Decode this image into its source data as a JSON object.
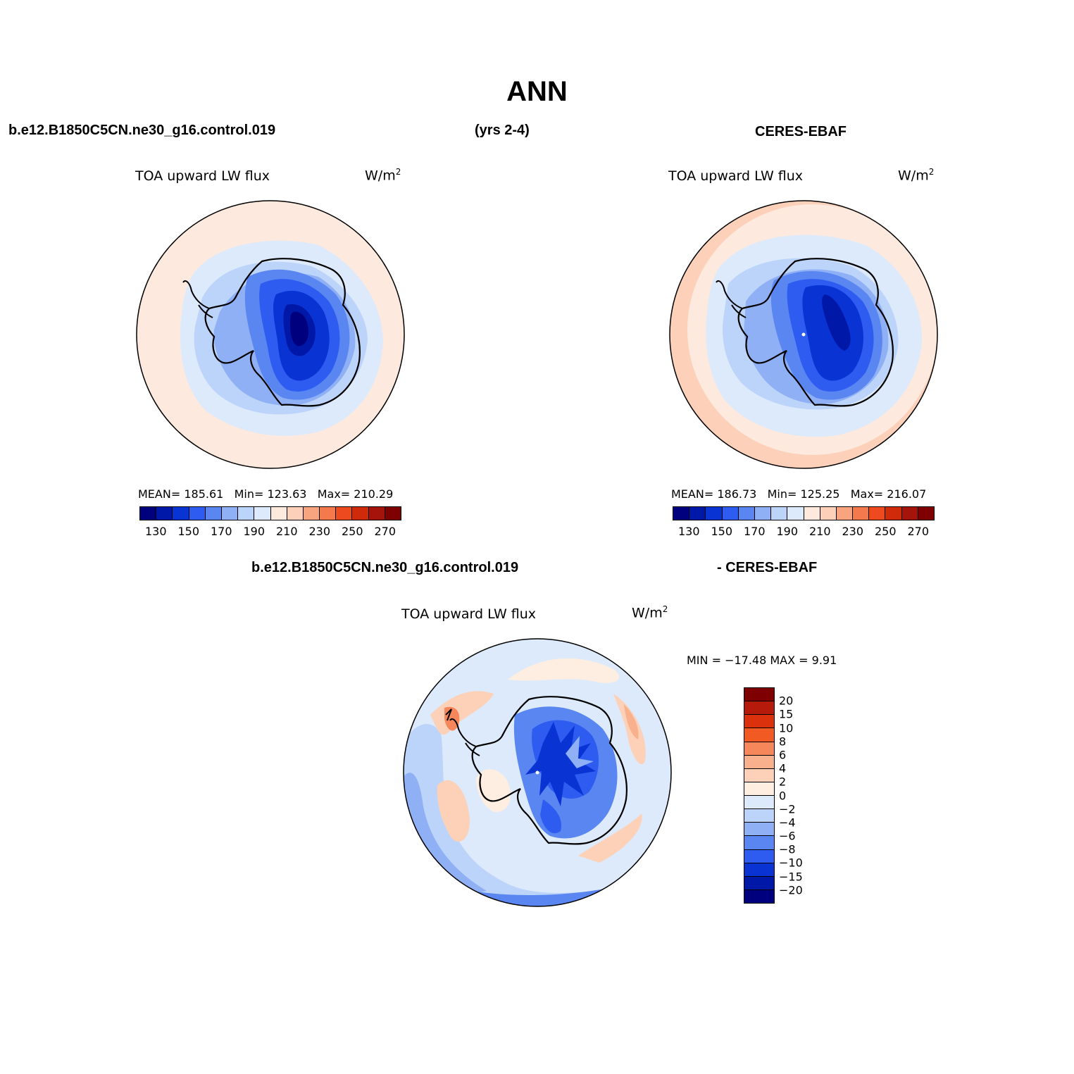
{
  "title": "ANN",
  "header": {
    "left": "b.e12.B1850C5CN.ne30_g16.control.019",
    "center": "(yrs 2-4)",
    "right": "CERES-EBAF"
  },
  "diff_header": {
    "left": "b.e12.B1850C5CN.ne30_g16.control.019",
    "right": "- CERES-EBAF"
  },
  "colors": {
    "abs_scale": [
      "#00007f",
      "#0018a8",
      "#0a33d4",
      "#2e5cf0",
      "#5a86f2",
      "#8fb0f5",
      "#bcd4fa",
      "#ddeafc",
      "#fde9dd",
      "#fcd0b9",
      "#f8a47f",
      "#f47a4d",
      "#ee4a1f",
      "#cf2a0a",
      "#a5140a",
      "#7f0000"
    ],
    "diff_scale": [
      "#7f0000",
      "#b51a0a",
      "#db320d",
      "#f25a23",
      "#f5875a",
      "#f8b08d",
      "#fcd1b8",
      "#feeee2",
      "#ddeafc",
      "#bcd4fa",
      "#8fb0f5",
      "#5a86f2",
      "#2e5cf0",
      "#0a33d4",
      "#0018a8",
      "#00007f"
    ]
  },
  "panels": [
    {
      "id": "model",
      "title": "TOA upward LW flux",
      "units": "W/m",
      "units_sup": "2",
      "mean_label": "MEAN=",
      "mean": "185.61",
      "min_label": "Min=",
      "min": "123.63",
      "max_label": "Max=",
      "max": "210.29",
      "ticks": [
        "130",
        "150",
        "170",
        "190",
        "210",
        "230",
        "250",
        "270"
      ]
    },
    {
      "id": "obs",
      "title": "TOA upward LW flux",
      "units": "W/m",
      "units_sup": "2",
      "mean_label": "MEAN=",
      "mean": "186.73",
      "min_label": "Min=",
      "min": "125.25",
      "max_label": "Max=",
      "max": "216.07",
      "ticks": [
        "130",
        "150",
        "170",
        "190",
        "210",
        "230",
        "250",
        "270"
      ]
    },
    {
      "id": "diff",
      "title": "TOA upward LW flux",
      "units": "W/m",
      "units_sup": "2",
      "minmax_text": "MIN = −17.48 MAX =    9.91",
      "ticks": [
        "20",
        "15",
        "10",
        "8",
        "6",
        "4",
        "2",
        "0",
        "−2",
        "−4",
        "−6",
        "−8",
        "−10",
        "−15",
        "−20"
      ]
    }
  ]
}
